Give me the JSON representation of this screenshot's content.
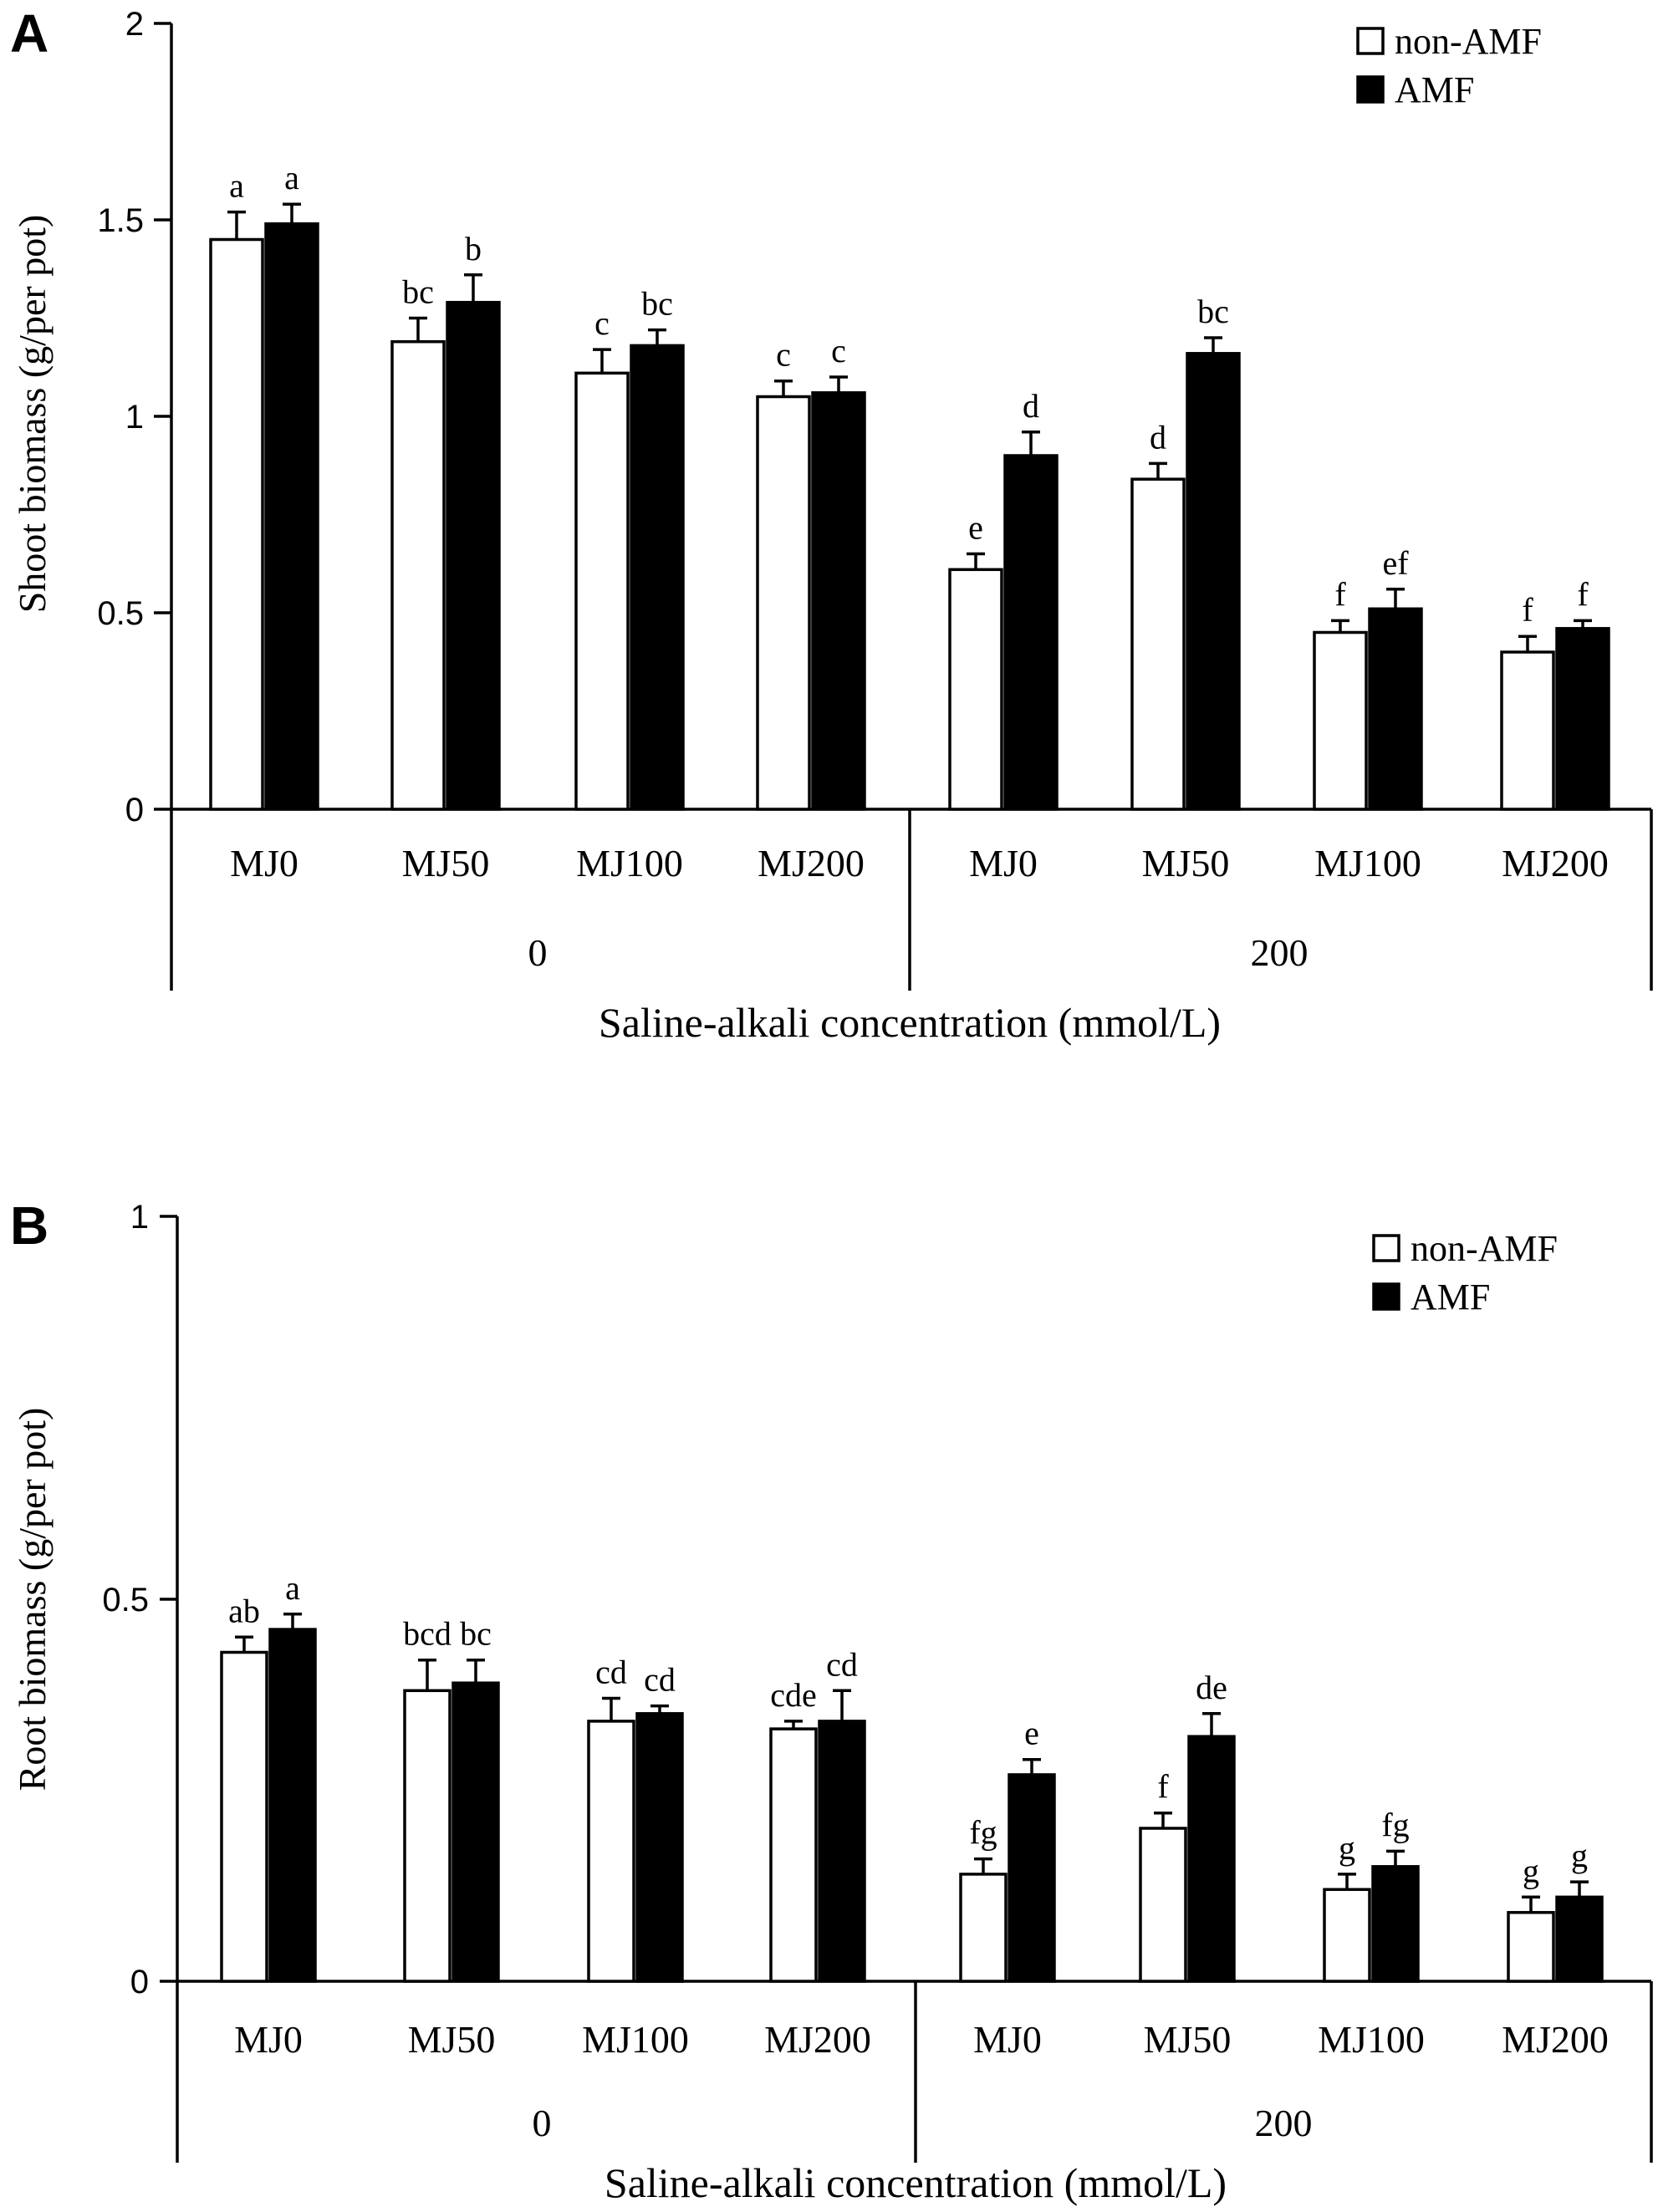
{
  "legend": {
    "items": [
      {
        "name": "non-AMF",
        "color": "#ffffff"
      },
      {
        "name": "AMF",
        "color": "#000000"
      }
    ]
  },
  "chart_data": [
    {
      "panel": "A",
      "type": "bar",
      "ylabel": "Shoot biomass (g/per pot)",
      "xlabel": "Saline-alkali concentration (mmol/L)",
      "ylim": [
        0,
        2
      ],
      "yticks": [
        "0",
        "0.5",
        "1",
        "1.5",
        "2"
      ],
      "ytick_values": [
        0,
        0.5,
        1,
        1.5,
        2
      ],
      "groups": [
        "0",
        "200"
      ],
      "categories": [
        "MJ0",
        "MJ50",
        "MJ100",
        "MJ200",
        "MJ0",
        "MJ50",
        "MJ100",
        "MJ200"
      ],
      "series": [
        {
          "name": "non-AMF",
          "values": [
            1.45,
            1.19,
            1.11,
            1.05,
            0.61,
            0.84,
            0.45,
            0.4
          ],
          "errors": [
            0.07,
            0.06,
            0.06,
            0.04,
            0.04,
            0.04,
            0.03,
            0.04
          ],
          "letters": [
            "a",
            "bc",
            "c",
            "c",
            "e",
            "d",
            "f",
            "f"
          ]
        },
        {
          "name": "AMF",
          "values": [
            1.49,
            1.29,
            1.18,
            1.06,
            0.9,
            1.16,
            0.51,
            0.46
          ],
          "errors": [
            0.05,
            0.07,
            0.04,
            0.04,
            0.06,
            0.04,
            0.05,
            0.02
          ],
          "letters": [
            "a",
            "b",
            "bc",
            "c",
            "d",
            "bc",
            "ef",
            "f"
          ]
        }
      ]
    },
    {
      "panel": "B",
      "type": "bar",
      "ylabel": "Root biomass (g/per pot)",
      "xlabel": "Saline-alkali concentration (mmol/L)",
      "ylim": [
        0,
        1
      ],
      "yticks": [
        "0",
        "0.5",
        "1"
      ],
      "ytick_values": [
        0,
        0.5,
        1
      ],
      "groups": [
        "0",
        "200"
      ],
      "categories": [
        "MJ0",
        "MJ50",
        "MJ100",
        "MJ200",
        "MJ0",
        "MJ50",
        "MJ100",
        "MJ200"
      ],
      "series": [
        {
          "name": "non-AMF",
          "values": [
            0.43,
            0.38,
            0.34,
            0.33,
            0.14,
            0.2,
            0.12,
            0.09
          ],
          "errors": [
            0.02,
            0.04,
            0.03,
            0.01,
            0.02,
            0.02,
            0.02,
            0.02
          ],
          "letters": [
            "ab",
            "bcd",
            "cd",
            "cde",
            "fg",
            "f",
            "g",
            "g"
          ]
        },
        {
          "name": "AMF",
          "values": [
            0.46,
            0.39,
            0.35,
            0.34,
            0.27,
            0.32,
            0.15,
            0.11
          ],
          "errors": [
            0.02,
            0.03,
            0.01,
            0.04,
            0.02,
            0.03,
            0.02,
            0.02
          ],
          "letters": [
            "a",
            "bc",
            "cd",
            "cd",
            "e",
            "de",
            "fg",
            "g"
          ]
        }
      ]
    }
  ]
}
